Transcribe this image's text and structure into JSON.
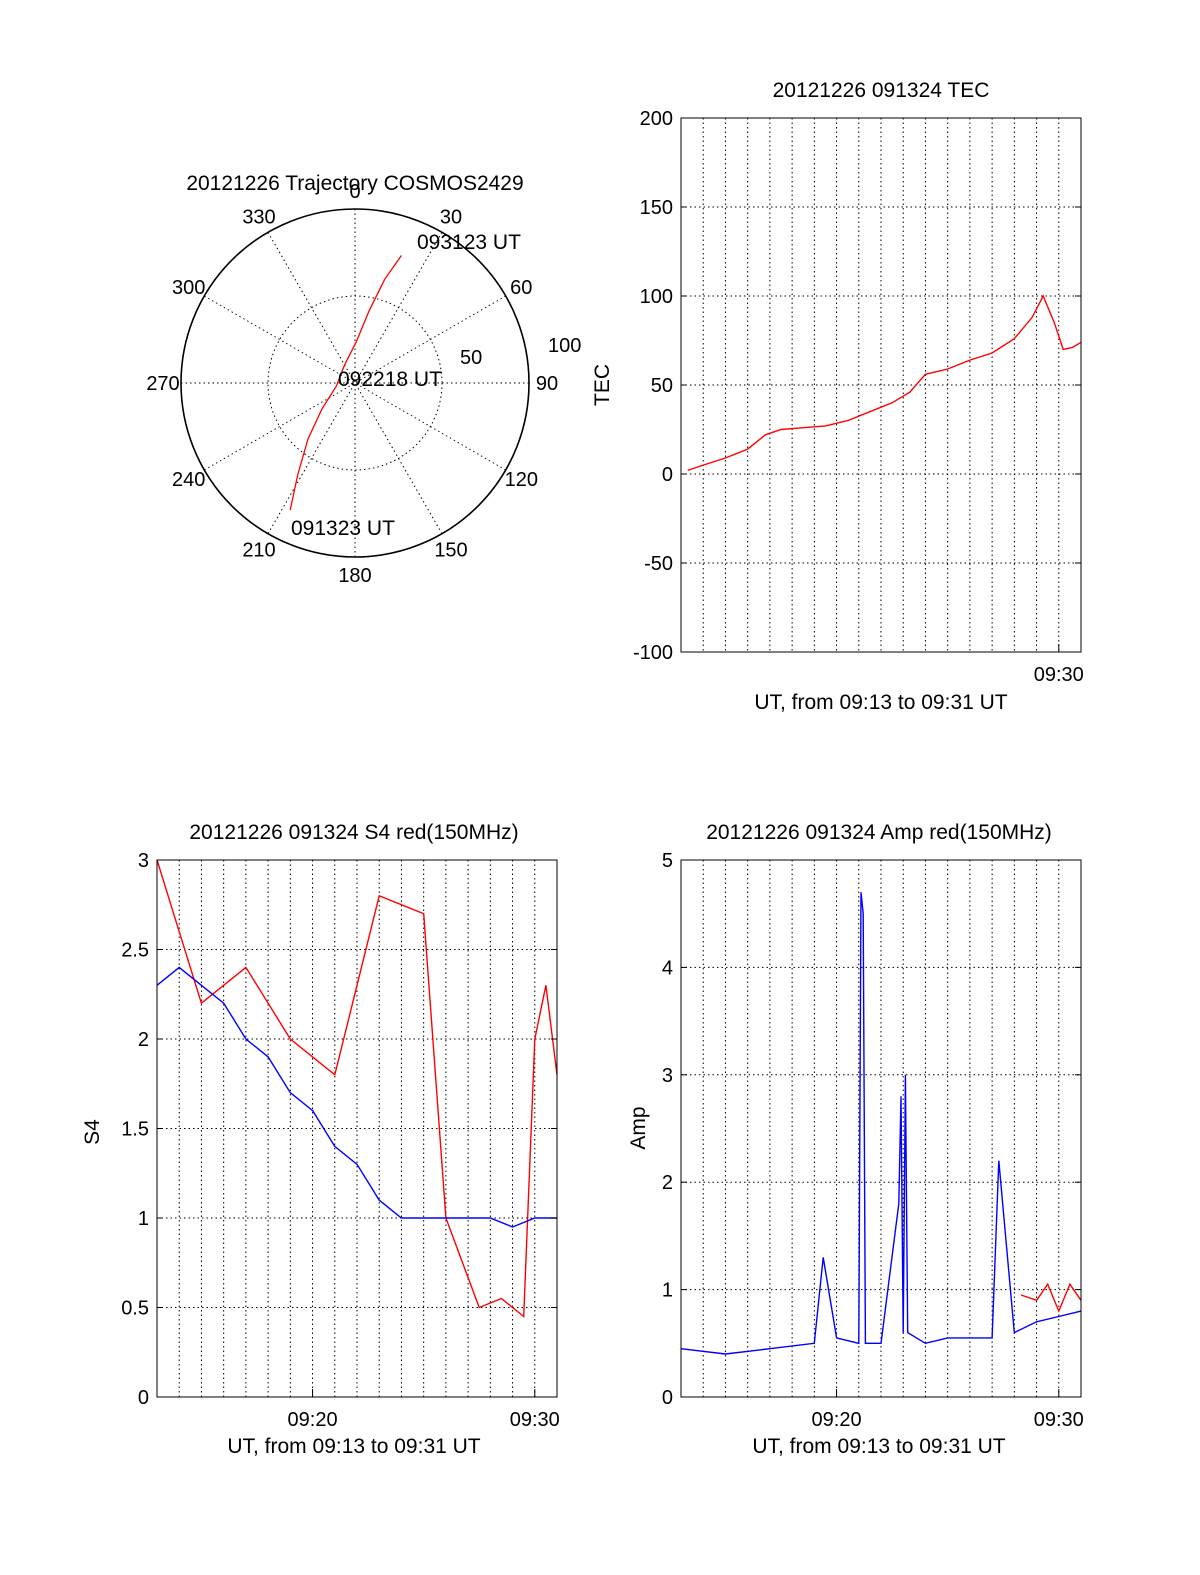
{
  "chart_data": [
    {
      "id": "trajectory",
      "type": "polar",
      "title": "20121226 Trajectory COSMOS2429",
      "azimuth_labels": [
        "0",
        "30",
        "60",
        "90",
        "120",
        "150",
        "180",
        "210",
        "240",
        "270",
        "300",
        "330"
      ],
      "radial_labels": [
        "50",
        "100"
      ],
      "annotations": {
        "start": "091323 UT",
        "mid": "092218 UT",
        "end": "093123 UT"
      },
      "track": [
        {
          "az": 207,
          "r": 82
        },
        {
          "az": 212,
          "r": 62
        },
        {
          "az": 220,
          "r": 42
        },
        {
          "az": 232,
          "r": 24
        },
        {
          "az": 260,
          "r": 11
        },
        {
          "az": 330,
          "r": 12
        },
        {
          "az": 2,
          "r": 24
        },
        {
          "az": 11,
          "r": 42
        },
        {
          "az": 16,
          "r": 62
        },
        {
          "az": 20,
          "r": 78
        }
      ],
      "color": "#ff0000"
    },
    {
      "id": "tec",
      "type": "line",
      "title": "20121226 091324 TEC",
      "xlabel": "UT, from 09:13 to 09:31 UT",
      "ylabel": "TEC",
      "xlim": [
        0,
        18
      ],
      "ylim": [
        -100,
        200
      ],
      "x_ticks": [
        {
          "v": 17,
          "t": "09:30"
        }
      ],
      "y_ticks": [
        -100,
        -50,
        0,
        50,
        100,
        150,
        200
      ],
      "series": [
        {
          "color": "#ff0000",
          "x": [
            0.3,
            1.0,
            2.0,
            3.0,
            3.8,
            4.5,
            5.5,
            6.5,
            7.5,
            8.5,
            9.5,
            10.3,
            11.0,
            12.0,
            13.0,
            14.0,
            15.0,
            15.8,
            16.3,
            16.8,
            17.2,
            17.6,
            18.0
          ],
          "y": [
            2,
            5,
            9,
            14,
            22,
            25,
            26,
            27,
            30,
            35,
            40,
            46,
            56,
            59,
            64,
            68,
            76,
            88,
            100,
            85,
            70,
            71,
            74
          ]
        }
      ]
    },
    {
      "id": "s4",
      "type": "line",
      "title": "20121226 091324 S4 red(150MHz)",
      "xlabel": "UT, from 09:13 to 09:31 UT",
      "ylabel": "S4",
      "xlim": [
        0,
        18
      ],
      "ylim": [
        0,
        3
      ],
      "x_ticks": [
        {
          "v": 7,
          "t": "09:20"
        },
        {
          "v": 17,
          "t": "09:30"
        }
      ],
      "y_ticks": [
        0,
        0.5,
        1,
        1.5,
        2,
        2.5,
        3
      ],
      "series": [
        {
          "color": "#ff0000",
          "x": [
            0,
            2,
            4,
            6,
            8,
            10,
            12,
            13,
            14.5,
            15.5,
            16.5,
            17.0,
            17.5,
            18.0
          ],
          "y": [
            3.0,
            2.2,
            2.4,
            2.0,
            1.8,
            2.8,
            2.7,
            1.0,
            0.5,
            0.55,
            0.45,
            2.0,
            2.3,
            1.8
          ]
        },
        {
          "color": "#0000ff",
          "x": [
            0,
            1,
            2,
            3,
            4,
            5,
            6,
            7,
            8,
            9,
            10,
            11,
            12,
            13,
            14,
            15,
            16,
            17,
            18
          ],
          "y": [
            2.3,
            2.4,
            2.3,
            2.2,
            2.0,
            1.9,
            1.7,
            1.6,
            1.4,
            1.3,
            1.1,
            1.0,
            1.0,
            1.0,
            1.0,
            1.0,
            0.95,
            1.0,
            1.0
          ]
        }
      ]
    },
    {
      "id": "amp",
      "type": "line",
      "title": "20121226 091324 Amp red(150MHz)",
      "xlabel": "UT, from 09:13 to 09:31 UT",
      "ylabel": "Amp",
      "xlim": [
        0,
        18
      ],
      "ylim": [
        0,
        5
      ],
      "x_ticks": [
        {
          "v": 7,
          "t": "09:20"
        },
        {
          "v": 17,
          "t": "09:30"
        }
      ],
      "y_ticks": [
        0,
        1,
        2,
        3,
        4,
        5
      ],
      "series": [
        {
          "color": "#0000ff",
          "x": [
            0,
            2,
            4,
            6,
            6.4,
            7,
            8,
            8.1,
            8.2,
            8.3,
            9,
            9.8,
            9.9,
            10.0,
            10.1,
            10.2,
            11,
            12,
            14,
            14.3,
            15,
            16,
            17,
            18
          ],
          "y": [
            0.45,
            0.4,
            0.45,
            0.5,
            1.3,
            0.55,
            0.5,
            4.7,
            4.5,
            0.5,
            0.5,
            1.8,
            2.8,
            0.6,
            3.0,
            0.6,
            0.5,
            0.55,
            0.55,
            2.2,
            0.6,
            0.7,
            0.75,
            0.8
          ]
        },
        {
          "color": "#ff0000",
          "x": [
            15.3,
            16,
            16.5,
            17,
            17.5,
            18
          ],
          "y": [
            0.95,
            0.9,
            1.05,
            0.8,
            1.05,
            0.9
          ]
        }
      ]
    }
  ]
}
